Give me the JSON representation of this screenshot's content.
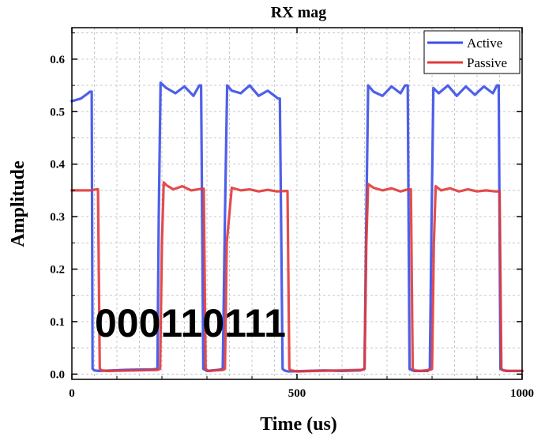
{
  "chart_data": {
    "type": "line",
    "title": "RX mag",
    "xlabel": "Time (us)",
    "ylabel": "Amplitude",
    "xlim": [
      0,
      1000
    ],
    "ylim": [
      -0.01,
      0.66
    ],
    "xticks": [
      0,
      500,
      1000
    ],
    "yticks": [
      0.0,
      0.1,
      0.2,
      0.3,
      0.4,
      0.5,
      0.6
    ],
    "ytick_labels": [
      "0.0",
      "0.1",
      "0.2",
      "0.3",
      "0.4",
      "0.5",
      "0.6"
    ],
    "grid": true,
    "legend_position": "top-right",
    "annotation": "000110111",
    "series": [
      {
        "name": "Active",
        "color": "#3b4fe8",
        "x": [
          0,
          20,
          36,
          40,
          44,
          46,
          50,
          60,
          120,
          180,
          190,
          193,
          197,
          210,
          230,
          250,
          270,
          283,
          287,
          292,
          296,
          300,
          325,
          335,
          340,
          345,
          355,
          375,
          395,
          415,
          435,
          458,
          462,
          468,
          472,
          480,
          520,
          560,
          600,
          640,
          650,
          654,
          658,
          670,
          690,
          710,
          730,
          740,
          746,
          750,
          754,
          760,
          790,
          795,
          799,
          803,
          815,
          835,
          855,
          875,
          895,
          915,
          935,
          944,
          948,
          952,
          956,
          965,
          1000
        ],
        "y": [
          0.52,
          0.525,
          0.535,
          0.538,
          0.538,
          0.01,
          0.007,
          0.006,
          0.008,
          0.009,
          0.01,
          0.3,
          0.555,
          0.545,
          0.535,
          0.548,
          0.53,
          0.55,
          0.55,
          0.01,
          0.008,
          0.006,
          0.008,
          0.01,
          0.3,
          0.55,
          0.54,
          0.535,
          0.55,
          0.53,
          0.54,
          0.525,
          0.525,
          0.01,
          0.007,
          0.005,
          0.006,
          0.007,
          0.006,
          0.007,
          0.01,
          0.3,
          0.55,
          0.538,
          0.53,
          0.548,
          0.535,
          0.55,
          0.55,
          0.01,
          0.008,
          0.006,
          0.006,
          0.01,
          0.3,
          0.545,
          0.535,
          0.55,
          0.53,
          0.548,
          0.532,
          0.548,
          0.535,
          0.55,
          0.55,
          0.01,
          0.008,
          0.006,
          0.006
        ]
      },
      {
        "name": "Passive",
        "color": "#e03a3a",
        "x": [
          0,
          20,
          40,
          55,
          58,
          62,
          66,
          80,
          140,
          190,
          196,
          200,
          204,
          210,
          225,
          245,
          265,
          287,
          293,
          297,
          301,
          305,
          318,
          336,
          340,
          344,
          355,
          375,
          395,
          415,
          435,
          455,
          475,
          479,
          483,
          487,
          500,
          540,
          600,
          645,
          650,
          654,
          658,
          670,
          690,
          710,
          730,
          747,
          753,
          757,
          761,
          775,
          795,
          800,
          804,
          808,
          820,
          840,
          860,
          880,
          900,
          920,
          940,
          946,
          950,
          954,
          958,
          970,
          1000
        ],
        "y": [
          0.35,
          0.35,
          0.35,
          0.352,
          0.352,
          0.01,
          0.007,
          0.006,
          0.007,
          0.008,
          0.01,
          0.25,
          0.365,
          0.36,
          0.352,
          0.358,
          0.35,
          0.353,
          0.353,
          0.01,
          0.007,
          0.006,
          0.007,
          0.008,
          0.01,
          0.25,
          0.355,
          0.35,
          0.352,
          0.348,
          0.351,
          0.348,
          0.349,
          0.349,
          0.01,
          0.007,
          0.005,
          0.006,
          0.007,
          0.008,
          0.01,
          0.25,
          0.362,
          0.355,
          0.35,
          0.354,
          0.348,
          0.352,
          0.352,
          0.01,
          0.007,
          0.006,
          0.008,
          0.01,
          0.25,
          0.358,
          0.35,
          0.354,
          0.348,
          0.352,
          0.348,
          0.35,
          0.348,
          0.348,
          0.348,
          0.01,
          0.007,
          0.006,
          0.006
        ]
      }
    ]
  }
}
